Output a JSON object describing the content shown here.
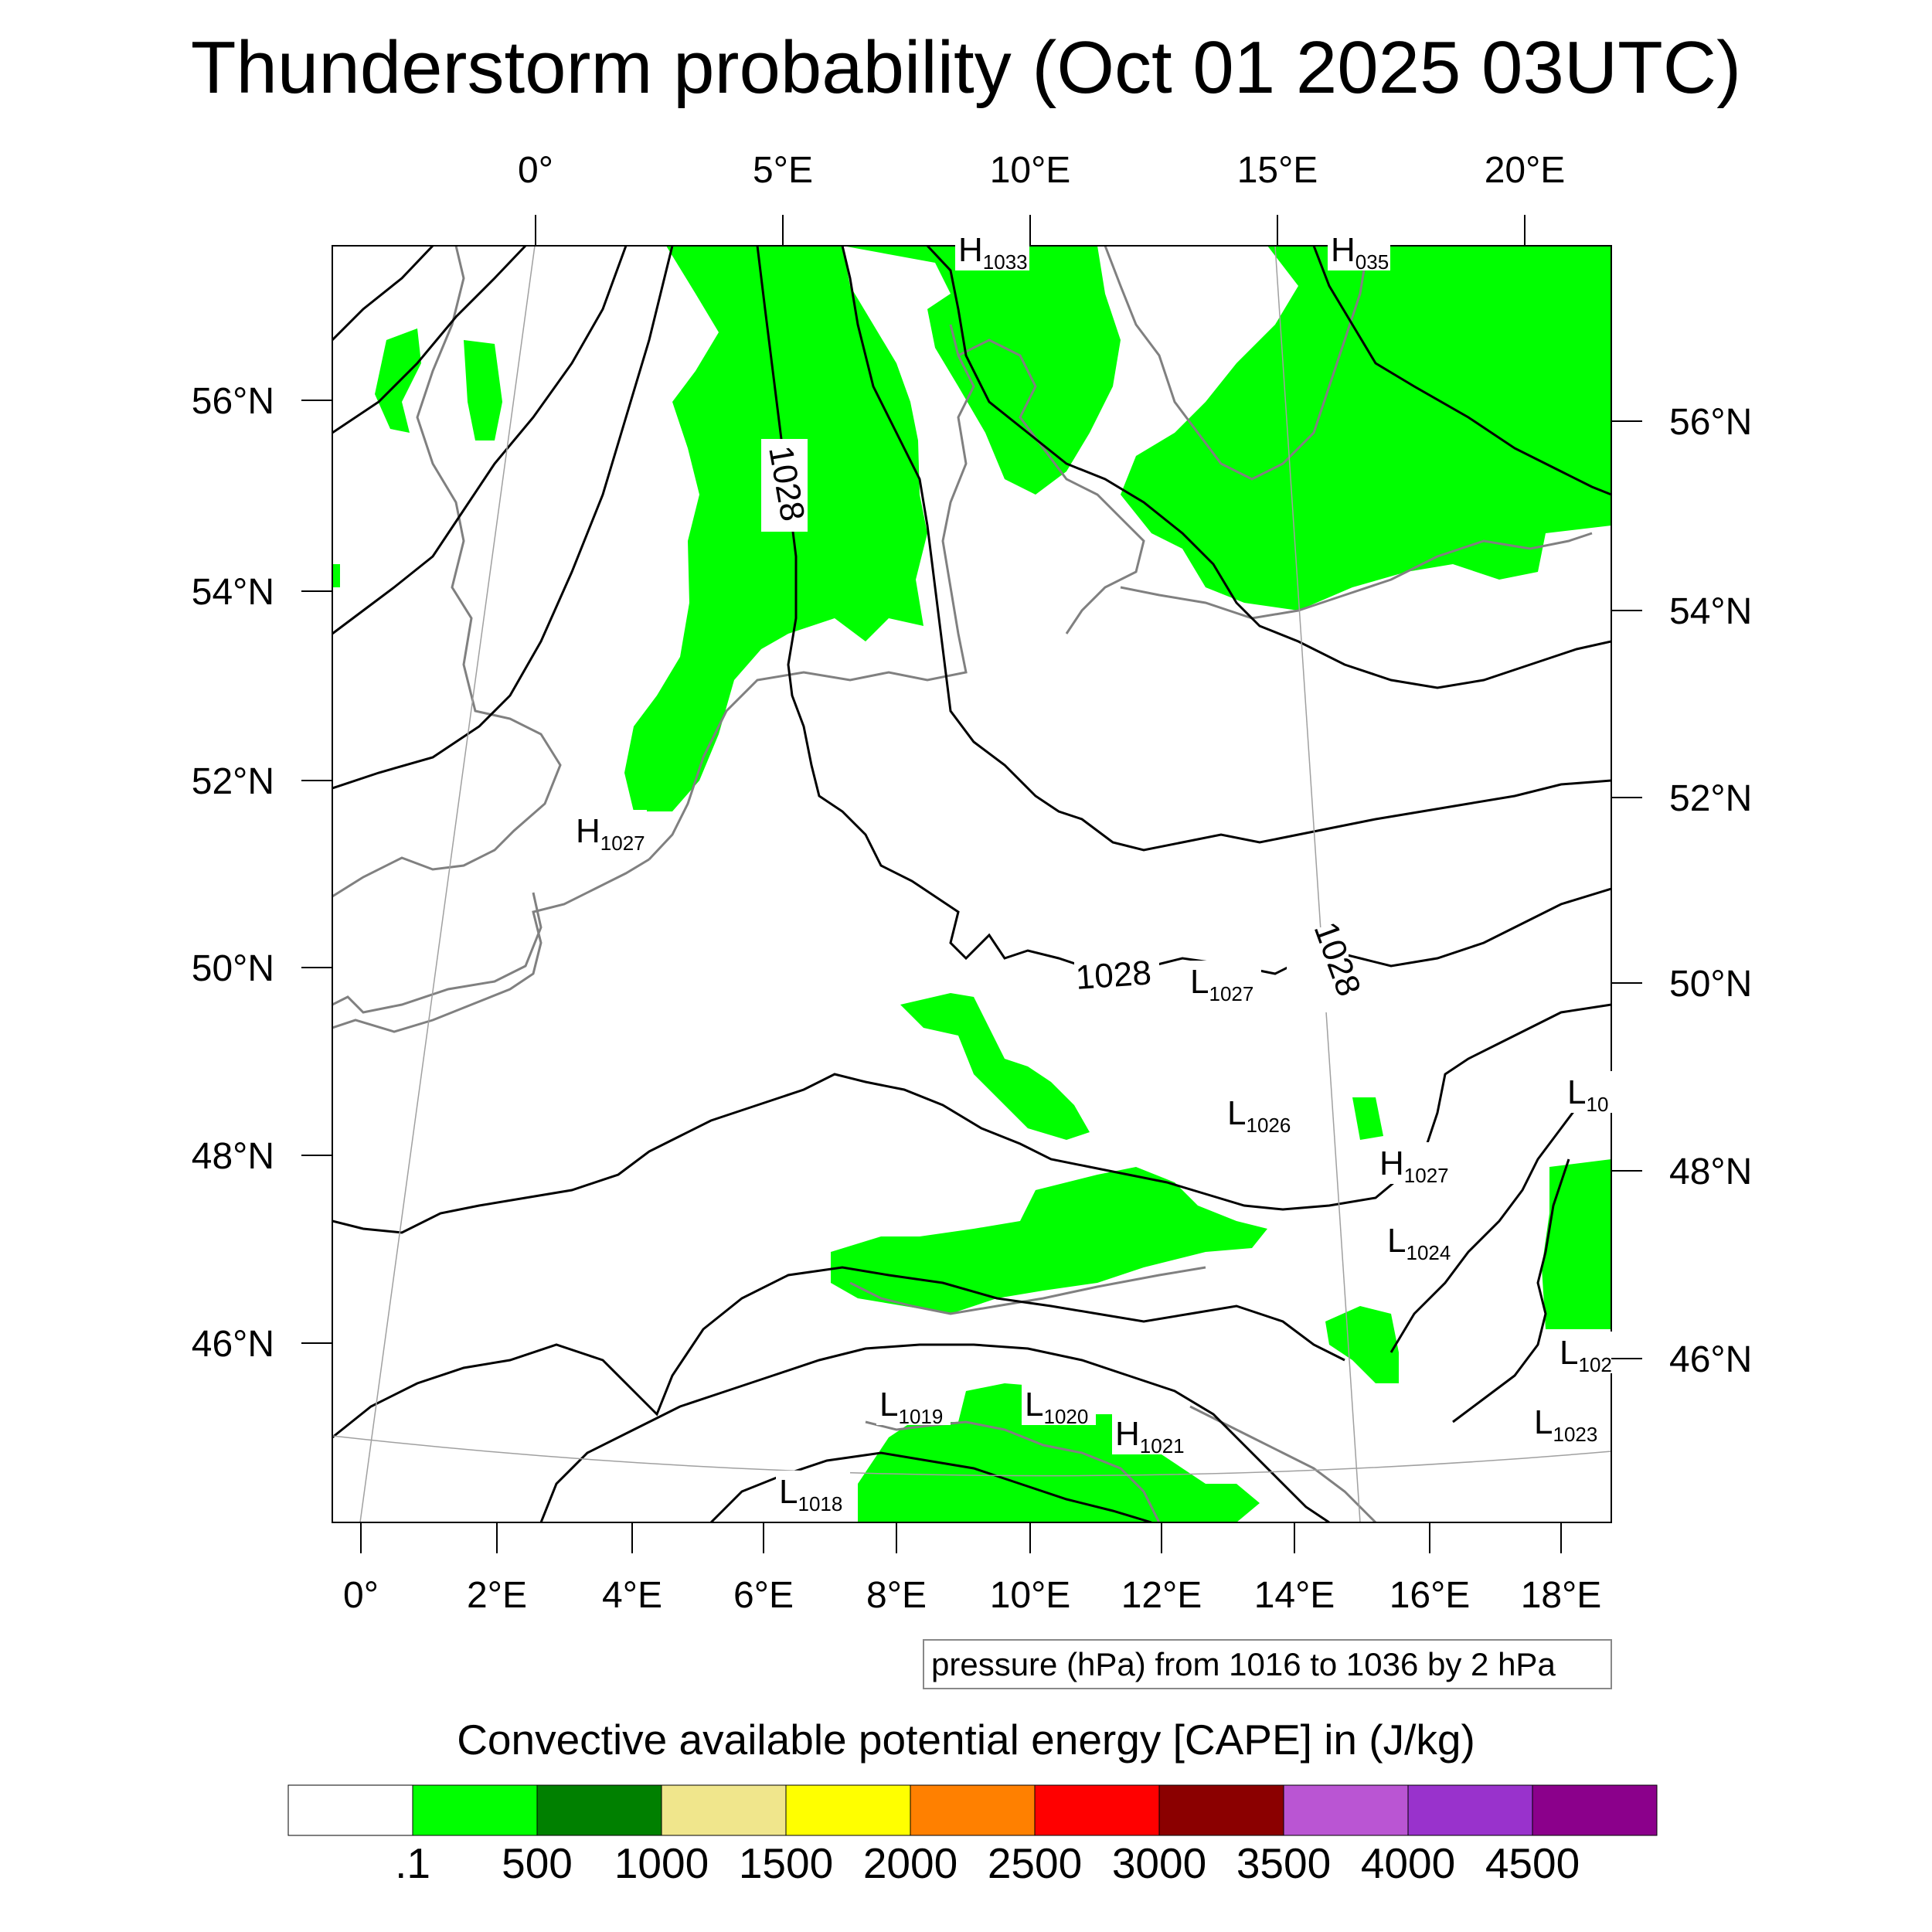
{
  "title": "Thunderstorm probability (Oct 01 2025 03UTC)",
  "map": {
    "top_lon_ticks": [
      "0°",
      "5°E",
      "10°E",
      "15°E",
      "20°E"
    ],
    "bottom_lon_ticks": [
      "0°",
      "2°E",
      "4°E",
      "6°E",
      "8°E",
      "10°E",
      "12°E",
      "14°E",
      "16°E",
      "18°E"
    ],
    "left_lat_ticks": [
      "56°N",
      "54°N",
      "52°N",
      "50°N",
      "48°N",
      "46°N"
    ],
    "right_lat_ticks": [
      "56°N",
      "54°N",
      "52°N",
      "50°N",
      "48°N",
      "46°N"
    ],
    "isobar_labels": [
      "1028",
      "1028",
      "1028"
    ],
    "pressure_centers": [
      {
        "type": "H",
        "value": "1033"
      },
      {
        "type": "H",
        "value": "035"
      },
      {
        "type": "H",
        "value": "1027"
      },
      {
        "type": "L",
        "value": "1027"
      },
      {
        "type": "L",
        "value": "1026"
      },
      {
        "type": "H",
        "value": "1027"
      },
      {
        "type": "L",
        "value": "1024"
      },
      {
        "type": "L",
        "value": "10"
      },
      {
        "type": "L",
        "value": "102"
      },
      {
        "type": "L",
        "value": "1023"
      },
      {
        "type": "L",
        "value": "1019"
      },
      {
        "type": "L",
        "value": "1020"
      },
      {
        "type": "H",
        "value": "1021"
      },
      {
        "type": "L",
        "value": "1018"
      }
    ],
    "contour_note": "pressure (hPa) from 1016 to 1036 by 2 hPa",
    "colors": {
      "cape_fill": "#00ff00",
      "coastline": "#808080",
      "isobar": "#000000"
    }
  },
  "colorbar": {
    "title": "Convective available potential energy [CAPE] in (J/kg)",
    "labels": [
      ".1",
      "500",
      "1000",
      "1500",
      "2000",
      "2500",
      "3000",
      "3500",
      "4000",
      "4500"
    ],
    "colors": [
      "#ffffff",
      "#00ff00",
      "#008000",
      "#f0e68c",
      "#ffff00",
      "#ff8000",
      "#ff0000",
      "#8b0000",
      "#ba55d3",
      "#9932cc",
      "#8b008b"
    ]
  }
}
